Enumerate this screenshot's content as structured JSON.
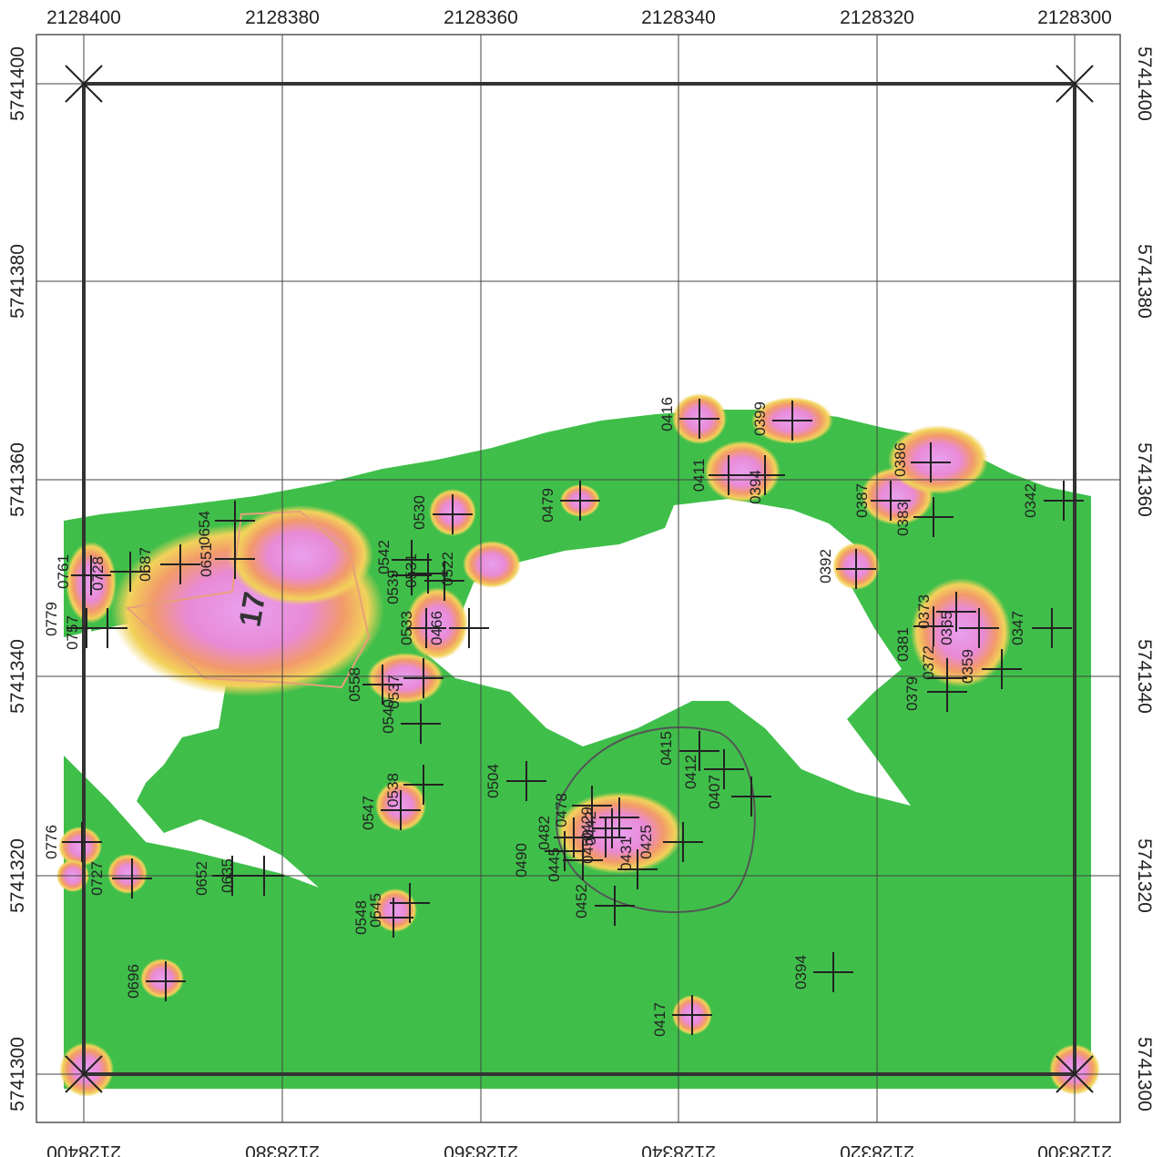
{
  "x_top_labels": [
    "2128400",
    "2128380",
    "2128360",
    "2128340",
    "2128320",
    "2128300"
  ],
  "x_bottom_labels": [
    "2128400",
    "2128380",
    "2128360",
    "2128340",
    "2128320",
    "2128300"
  ],
  "y_left_labels": [
    "5741400",
    "5741380",
    "5741360",
    "5741340",
    "5741320",
    "5741300"
  ],
  "y_right_labels": [
    "5741400",
    "5741380",
    "5741360",
    "5741340",
    "5741320",
    "5741300"
  ],
  "zone_label": "17",
  "point_labels": [
    "0416",
    "0399",
    "0386",
    "0411",
    "0394",
    "0479",
    "0530",
    "0387",
    "0383",
    "0342",
    "0654",
    "0651",
    "0687",
    "0728",
    "0761",
    "0779",
    "0757",
    "0542",
    "0531",
    "0522",
    "0539",
    "0533",
    "0466",
    "0392",
    "0373",
    "0381",
    "0365",
    "0347",
    "0372",
    "0359",
    "0379",
    "0558",
    "0537",
    "0540",
    "0415",
    "0412",
    "0407",
    "0504",
    "0538",
    "0547",
    "0478",
    "0482",
    "0490",
    "0445",
    "0442",
    "0425",
    "0431",
    "0429",
    "0452",
    "0450",
    "0776",
    "0727",
    "0652",
    "0635",
    "0548",
    "0545",
    "0696",
    "0394",
    "0417"
  ],
  "colors": {
    "low": "#3fbf4a",
    "mid": "#f2d25a",
    "high": "#e8a0ee",
    "grid": "#444444",
    "boundary": "#333333",
    "outline": "#e8a07a"
  }
}
